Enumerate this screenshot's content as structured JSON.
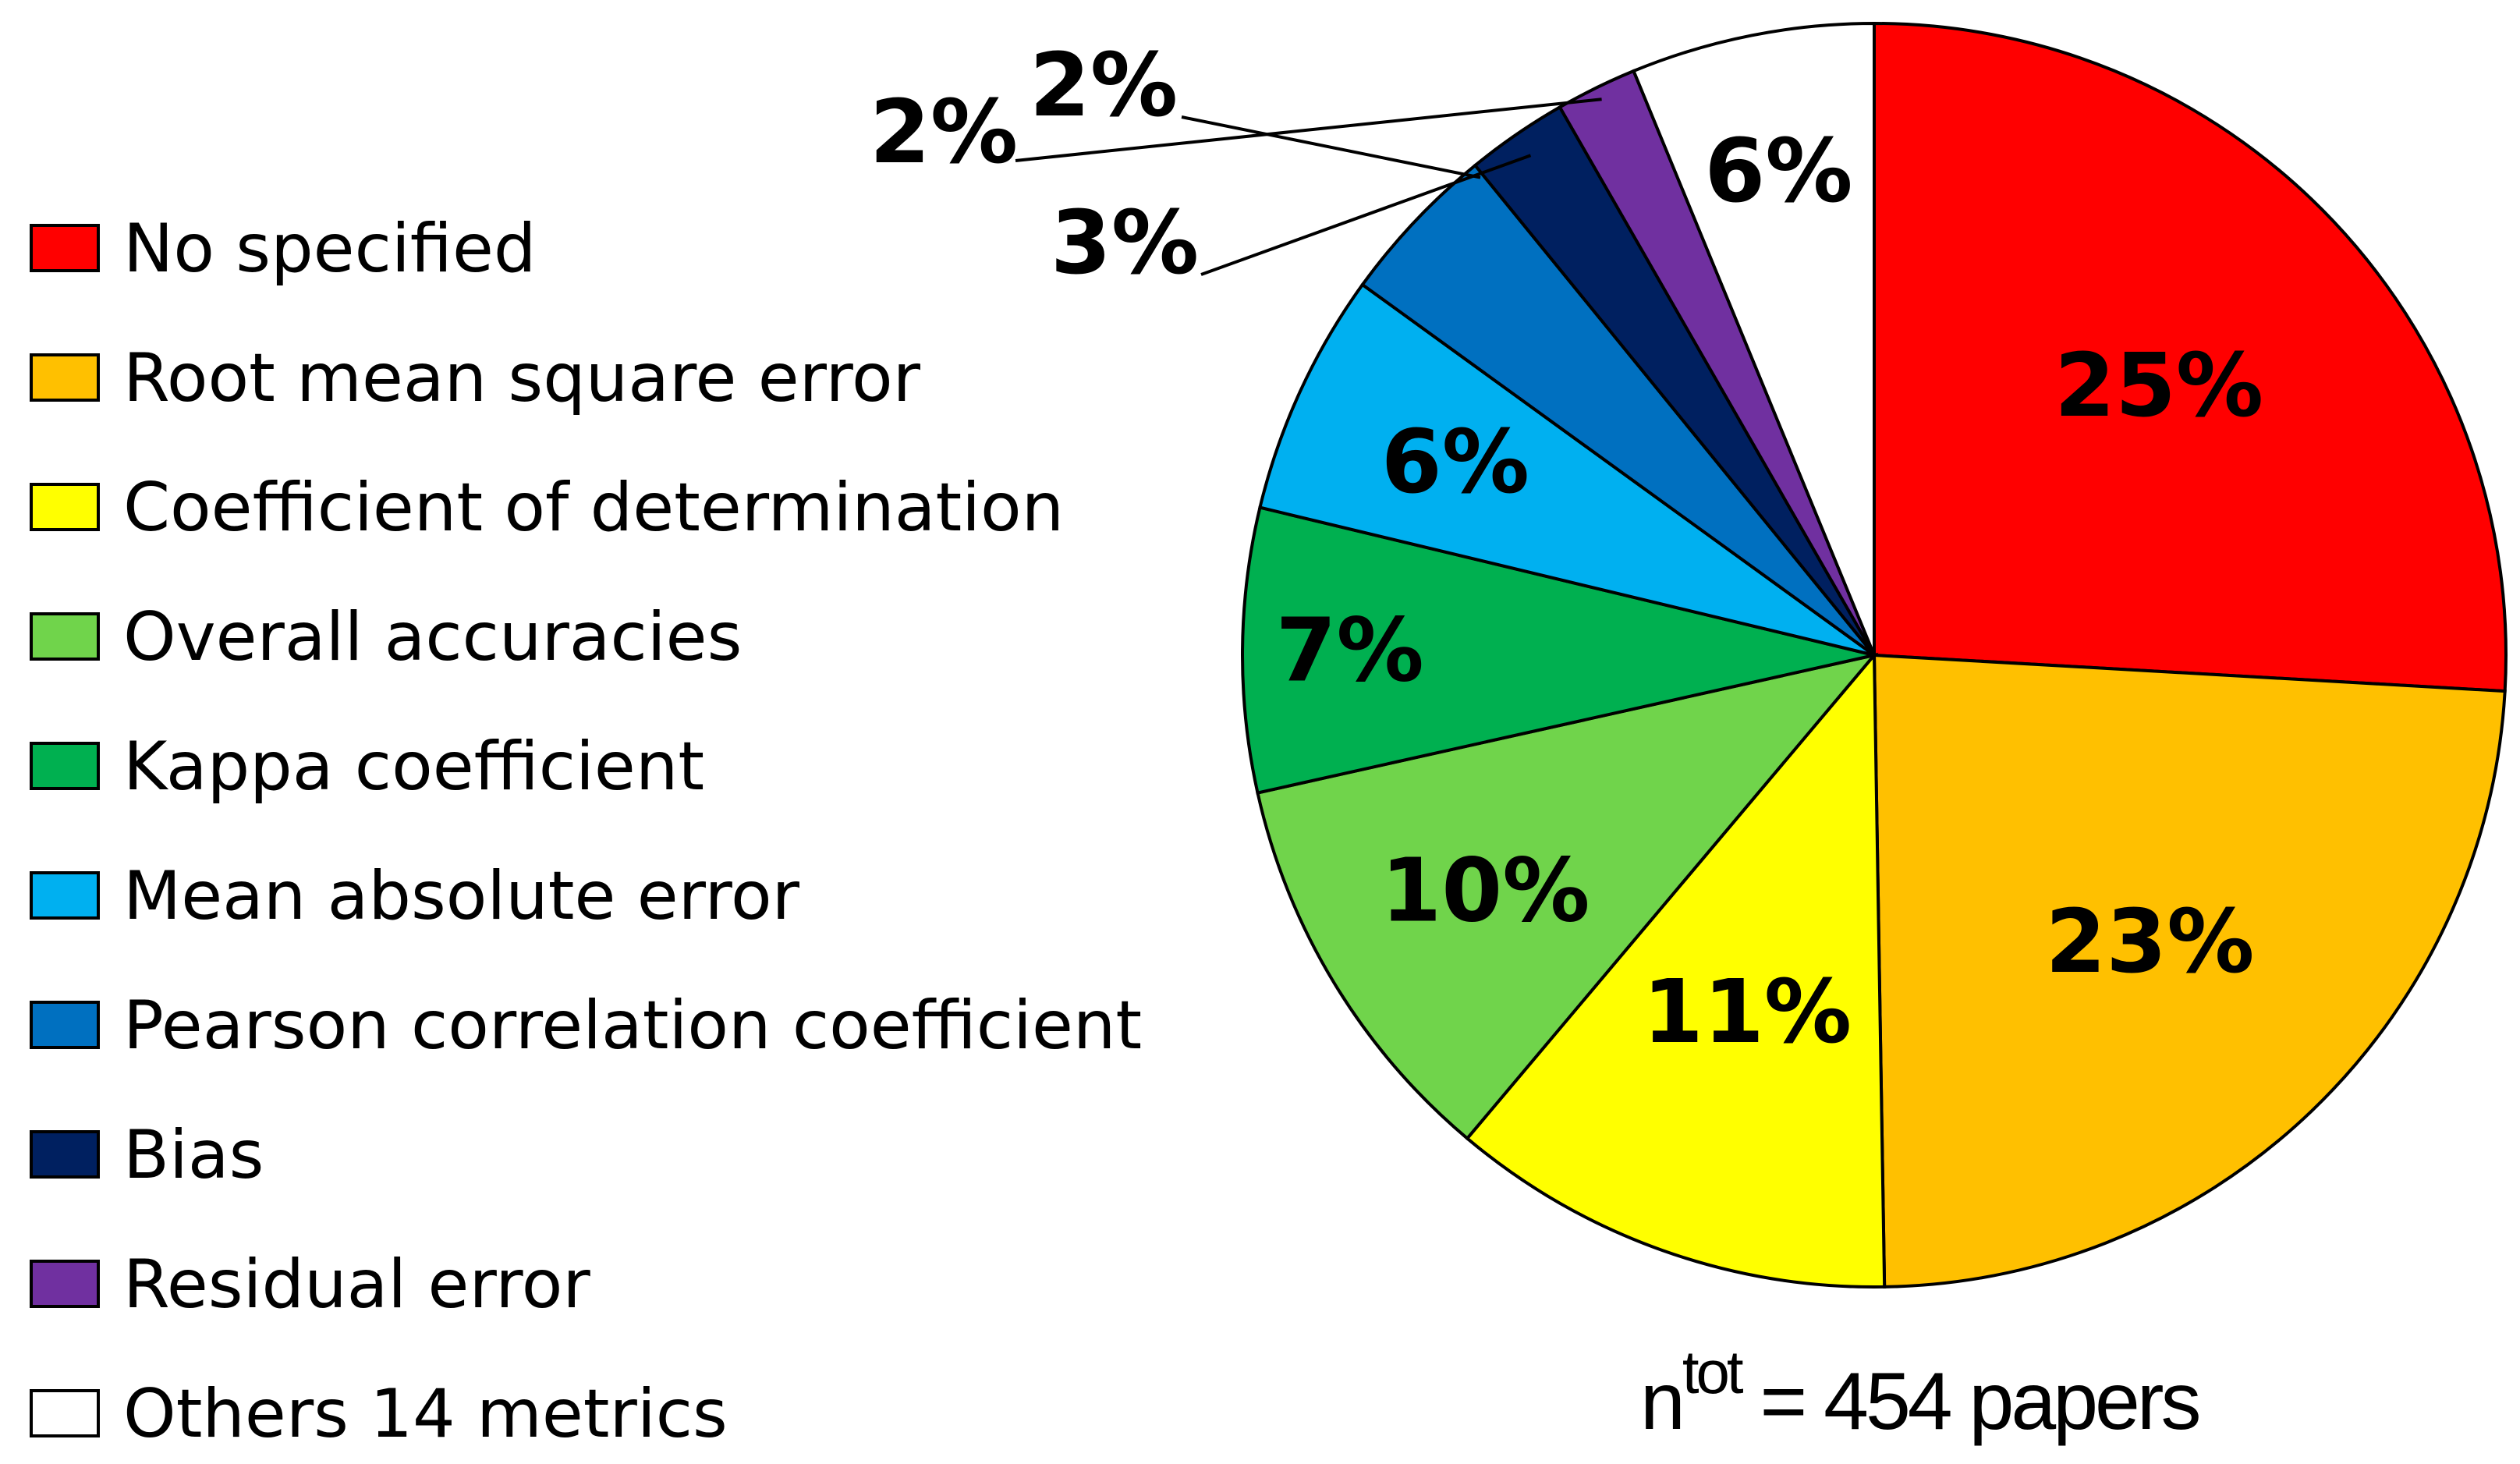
{
  "chart_data": {
    "type": "pie",
    "slices": [
      {
        "label": "No specified",
        "value": 25,
        "value_label": "25%",
        "color": "#ff0000"
      },
      {
        "label": "Root mean square error",
        "value": 23,
        "value_label": "23%",
        "color": "#ffc000"
      },
      {
        "label": "Coefficient of determination",
        "value": 11,
        "value_label": "11%",
        "color": "#ffff00"
      },
      {
        "label": "Overall accuracies",
        "value": 10,
        "value_label": "10%",
        "color": "#70d44b"
      },
      {
        "label": "Kappa coefficient",
        "value": 7,
        "value_label": "7%",
        "color": "#00b050"
      },
      {
        "label": "Mean absolute error",
        "value": 6,
        "value_label": "6%",
        "color": "#00b0f0"
      },
      {
        "label": "Pearson correlation coefficient",
        "value": 4,
        "value_label": "",
        "color": "#0070c0"
      },
      {
        "label": "Bias",
        "value": 2.5,
        "value_label": "3%",
        "color": "#002060"
      },
      {
        "label": "Residual error",
        "value": 2,
        "value_label": "2%",
        "color": "#7030a0"
      },
      {
        "label": "Others 14 metrics",
        "value": 6,
        "value_label": "6%",
        "color": "#ffffff"
      }
    ],
    "outside_labels": [
      "2%"
    ],
    "legend_position": "left",
    "start_angle": "12 o'clock, clockwise"
  },
  "note": {
    "n": "n",
    "sup": "tot",
    "rest": " = 454 papers"
  }
}
